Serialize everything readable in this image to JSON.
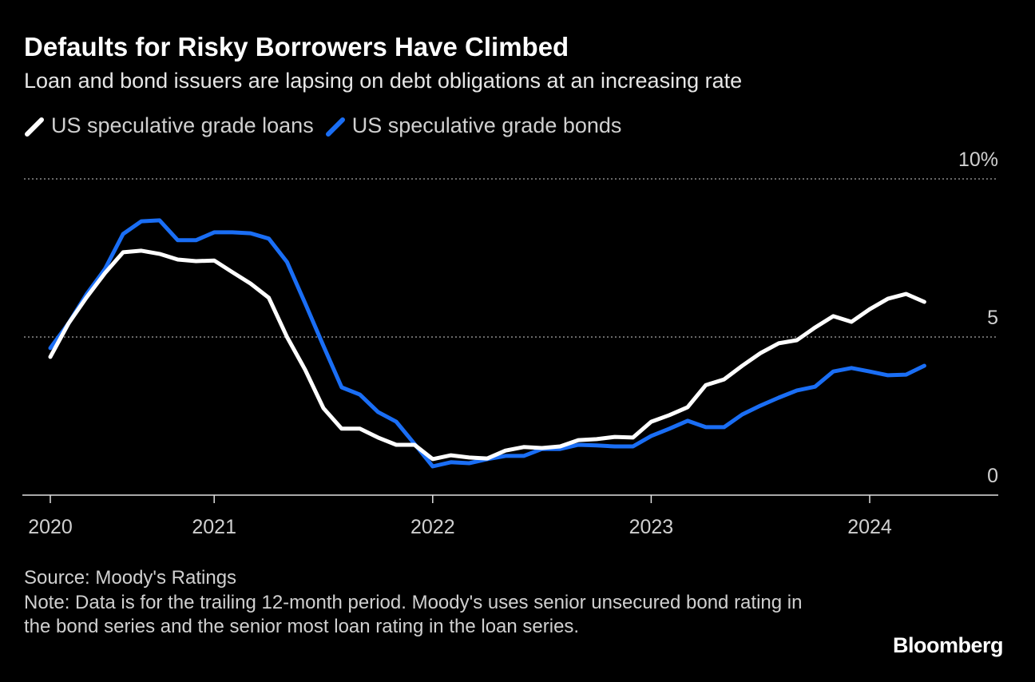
{
  "chart_data": {
    "type": "line",
    "title": "Defaults for Risky Borrowers Have Climbed",
    "subtitle": "Loan and bond issuers are lapsing on debt obligations at an increasing rate",
    "source": "Source: Moody's Ratings",
    "note": "Note: Data is for the trailing 12-month period. Moody's uses senior unsecured bond rating in the bond series and the senior most loan rating in the loan series.",
    "brand": "Bloomberg",
    "categories": [
      "2020",
      null,
      null,
      null,
      null,
      null,
      null,
      null,
      null,
      "2021",
      null,
      null,
      null,
      null,
      null,
      null,
      null,
      null,
      null,
      null,
      null,
      "2022",
      null,
      null,
      null,
      null,
      null,
      null,
      null,
      null,
      null,
      null,
      null,
      "2023",
      null,
      null,
      null,
      null,
      null,
      null,
      null,
      null,
      null,
      null,
      null,
      "2024",
      null,
      null,
      null
    ],
    "series": [
      {
        "name": "US speculative grade loans",
        "color": "#ffffff",
        "values": [
          4.37,
          5.43,
          6.26,
          7.02,
          7.68,
          7.73,
          7.63,
          7.45,
          7.4,
          7.42,
          7.05,
          6.69,
          6.24,
          5.0,
          3.96,
          2.75,
          2.1,
          2.1,
          1.82,
          1.59,
          1.59,
          1.14,
          1.26,
          1.19,
          1.16,
          1.41,
          1.52,
          1.49,
          1.54,
          1.74,
          1.77,
          1.84,
          1.82,
          2.32,
          2.53,
          2.78,
          3.48,
          3.66,
          4.09,
          4.49,
          4.8,
          4.9,
          5.3,
          5.66,
          5.48,
          5.88,
          6.21,
          6.36,
          6.11
        ]
      },
      {
        "name": "US speculative grade bonds",
        "color": "#1a6ef5",
        "values": [
          4.65,
          5.43,
          6.36,
          7.15,
          8.26,
          8.66,
          8.69,
          8.06,
          8.06,
          8.31,
          8.31,
          8.28,
          8.11,
          7.37,
          6.06,
          4.72,
          3.41,
          3.18,
          2.63,
          2.32,
          1.62,
          0.91,
          1.04,
          1.01,
          1.14,
          1.24,
          1.24,
          1.46,
          1.46,
          1.59,
          1.57,
          1.54,
          1.54,
          1.87,
          2.1,
          2.35,
          2.15,
          2.15,
          2.55,
          2.83,
          3.08,
          3.31,
          3.43,
          3.91,
          4.02,
          3.91,
          3.79,
          3.81,
          4.09
        ]
      }
    ],
    "ylim": [
      0,
      10
    ],
    "yticks": [
      0,
      5,
      {
        "value": 10,
        "label": "10%"
      }
    ],
    "grid": true
  }
}
